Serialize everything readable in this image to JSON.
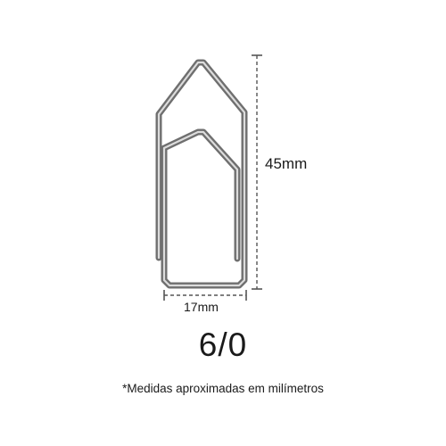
{
  "diagram": {
    "height_label": "45mm",
    "width_label": "17mm",
    "size_code": "6/0",
    "footnote": "*Medidas aproximadas em milímetros"
  },
  "colors": {
    "clip_outer": "#6f6f6f",
    "clip_inner": "#d8d8d8",
    "dimension_line": "#555555",
    "text": "#1a1a1a",
    "background": "#ffffff"
  },
  "icons": {
    "clip": "paperclip-icon"
  }
}
